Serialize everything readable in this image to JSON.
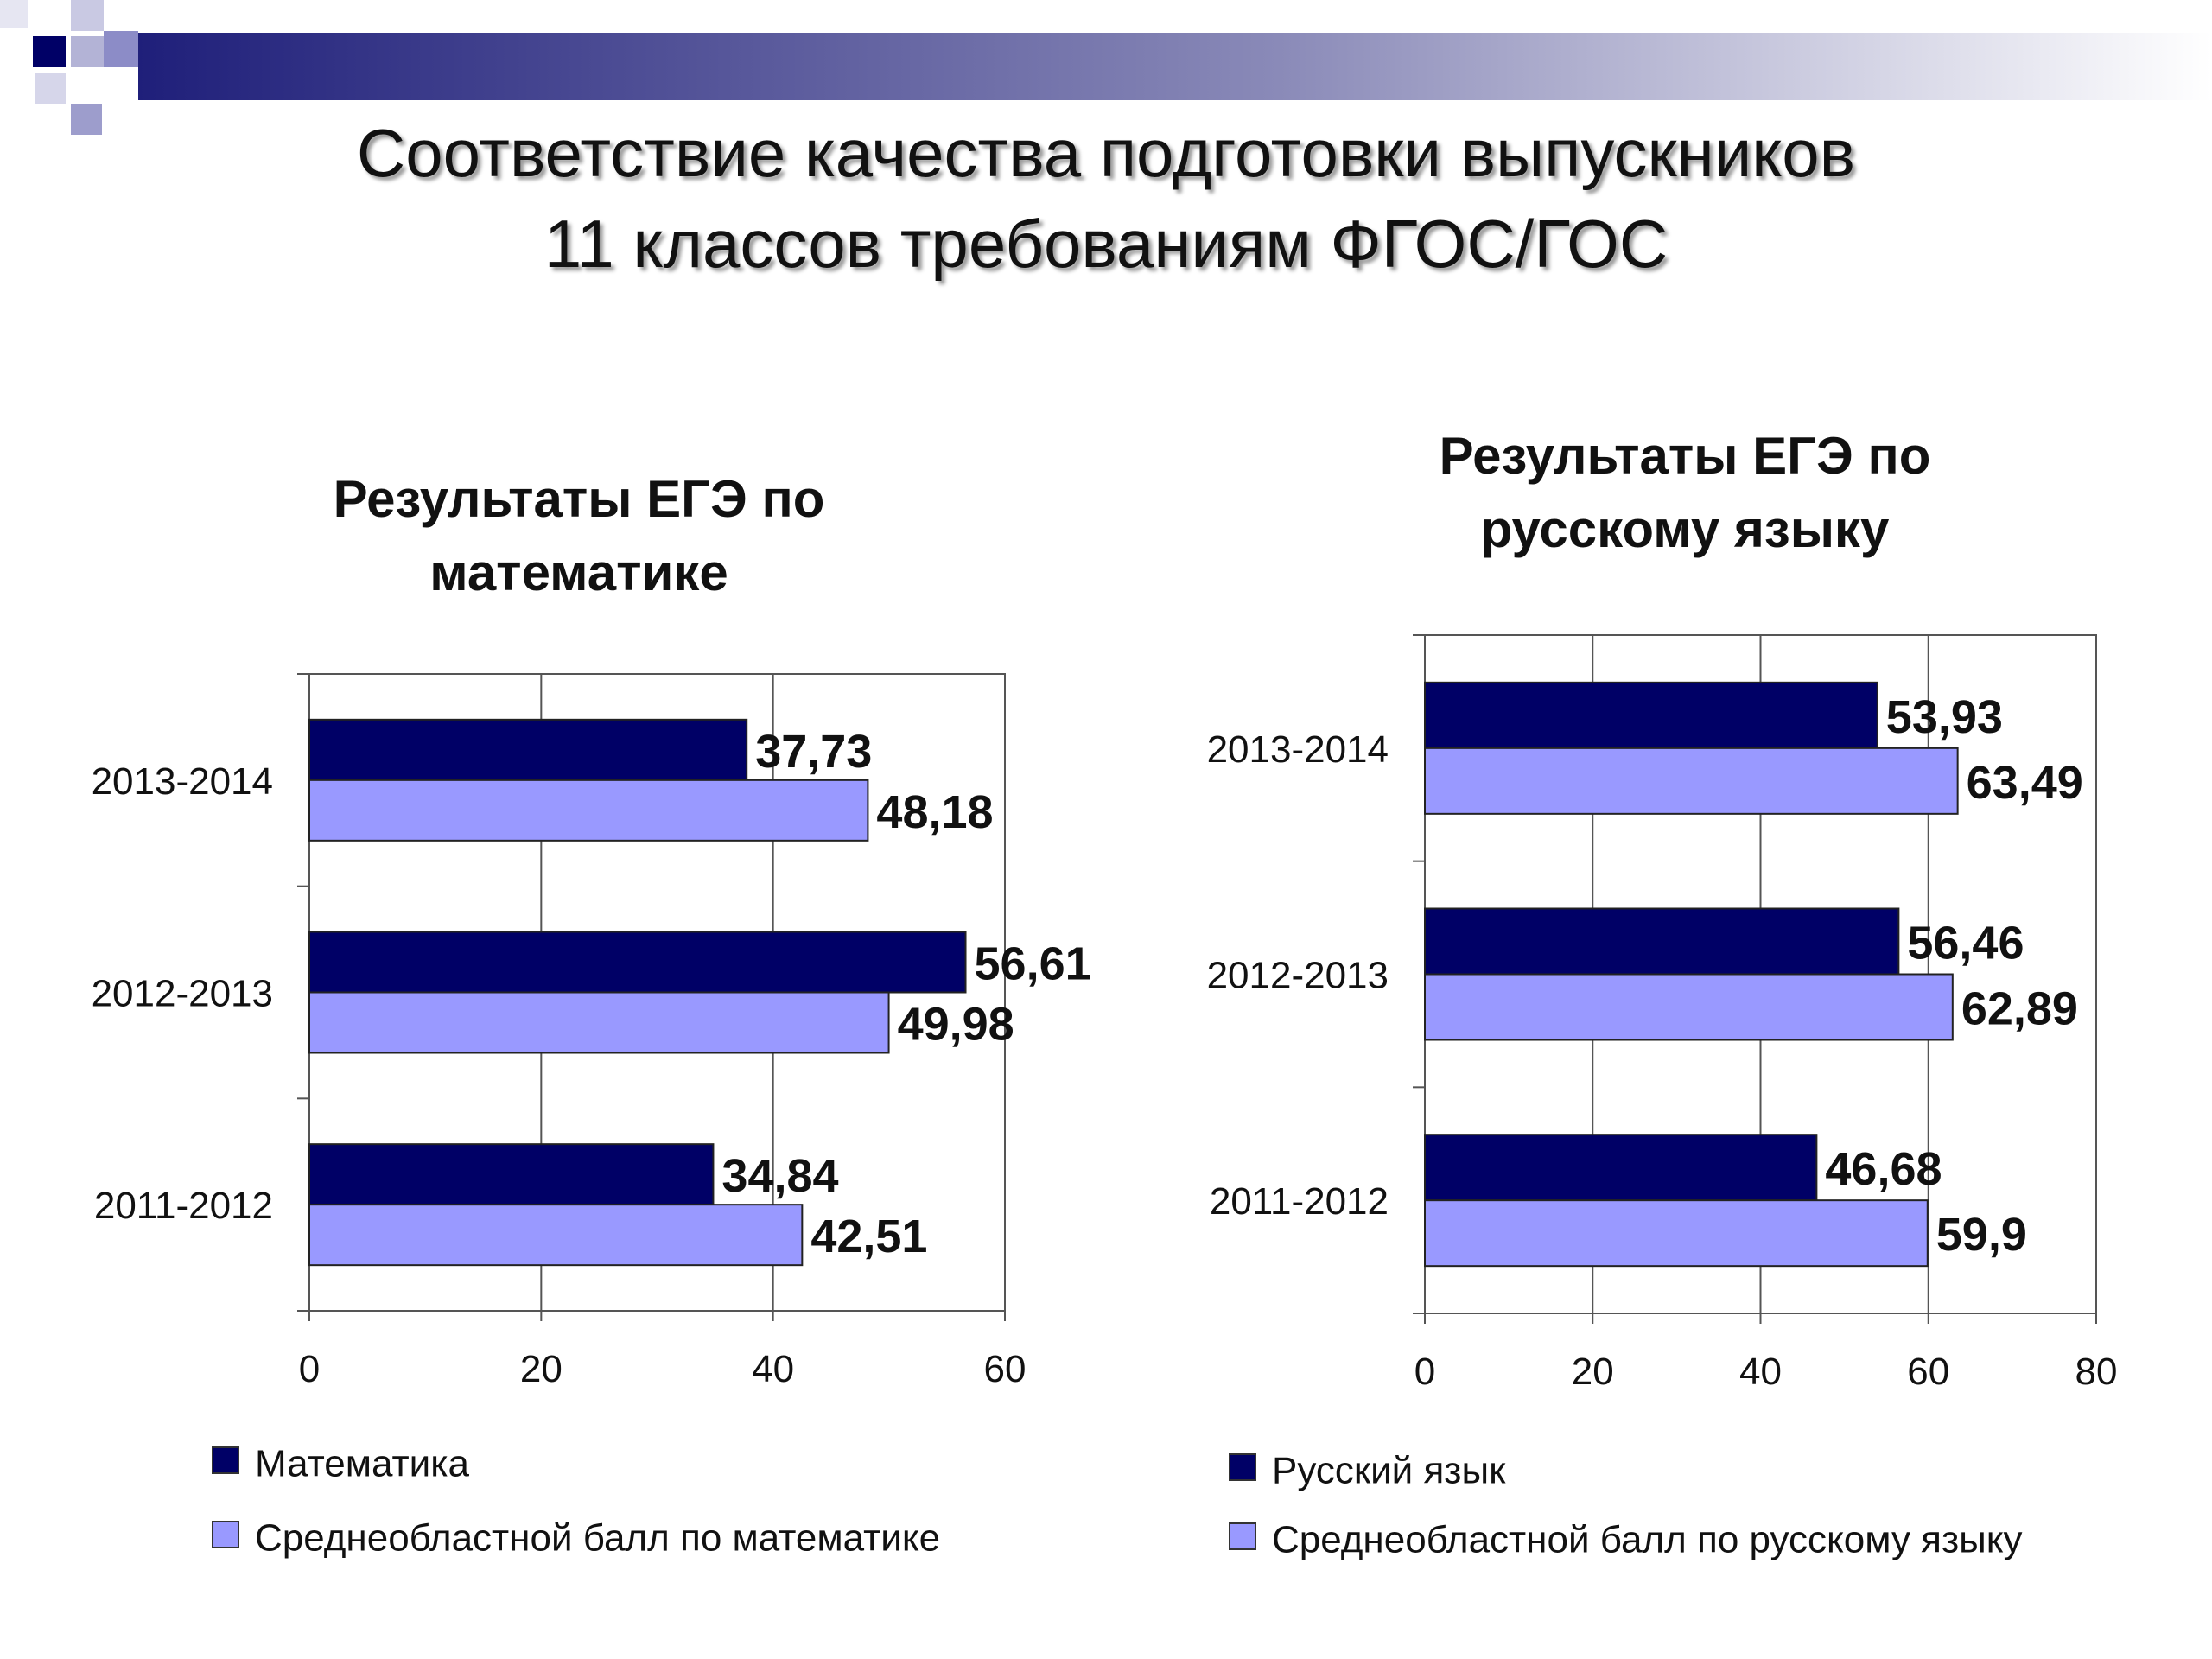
{
  "title_lines": [
    "Соответствие качества подготовки выпускников",
    "11 классов требованиям ФГОС/ГОС"
  ],
  "colors": {
    "series_dark": "#000066",
    "series_light": "#9999ff",
    "deco_band": "#1f1f7a"
  },
  "chart_data": [
    {
      "type": "bar",
      "orientation": "horizontal",
      "title_lines": [
        "Результаты ЕГЭ по",
        "математике"
      ],
      "categories": [
        "2013-2014",
        "2012-2013",
        "2011-2012"
      ],
      "series": [
        {
          "name": "Математика",
          "values": [
            37.73,
            56.61,
            34.84
          ],
          "labels": [
            "37,73",
            "56,61",
            "34,84"
          ]
        },
        {
          "name": "Среднеобластной балл по математике",
          "values": [
            48.18,
            49.98,
            42.51
          ],
          "labels": [
            "48,18",
            "49,98",
            "42,51"
          ]
        }
      ],
      "xlim": [
        0,
        60
      ],
      "xticks": [
        "0",
        "20",
        "40",
        "60"
      ],
      "grid": true,
      "legend_position": "bottom"
    },
    {
      "type": "bar",
      "orientation": "horizontal",
      "title_lines": [
        "Результаты ЕГЭ по",
        "русскому языку"
      ],
      "categories": [
        "2013-2014",
        "2012-2013",
        "2011-2012"
      ],
      "series": [
        {
          "name": "Русский язык",
          "values": [
            53.93,
            56.46,
            46.68
          ],
          "labels": [
            "53,93",
            "56,46",
            "46,68"
          ]
        },
        {
          "name": "Среднеобластной балл по русскому языку",
          "values": [
            63.49,
            62.89,
            59.9
          ],
          "labels": [
            "63,49",
            "62,89",
            "59,9"
          ]
        }
      ],
      "xlim": [
        0,
        80
      ],
      "xticks": [
        "0",
        "20",
        "40",
        "60",
        "80"
      ],
      "grid": true,
      "legend_position": "bottom"
    }
  ]
}
